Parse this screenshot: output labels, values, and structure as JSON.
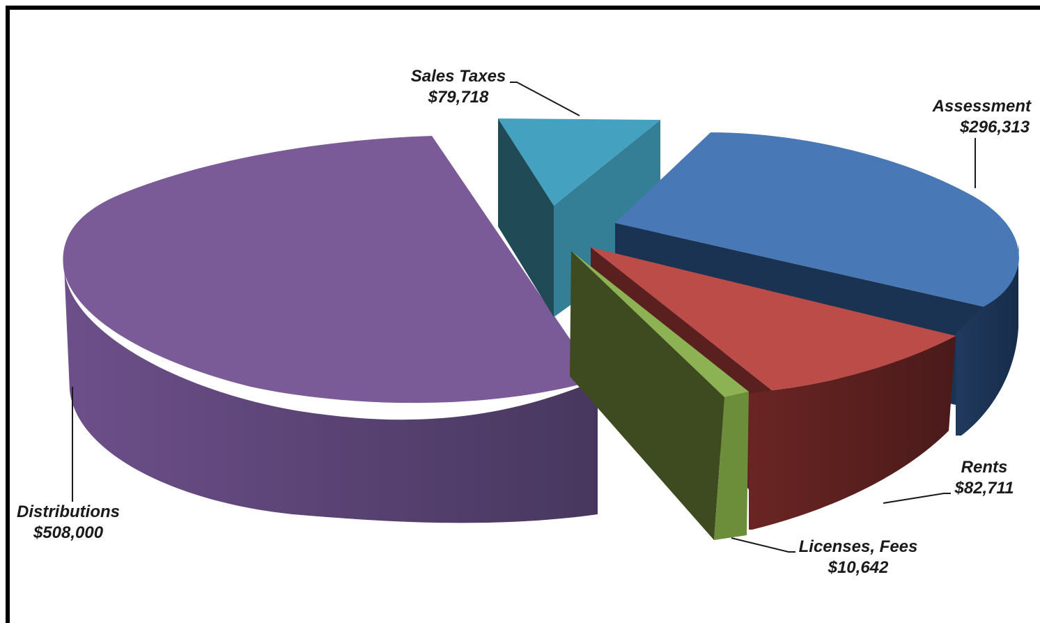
{
  "chart_data": {
    "type": "pie",
    "title": "",
    "slices": [
      {
        "label": "Distributions",
        "value_label": "$508,000",
        "value": 508000,
        "color": "#7b5a98"
      },
      {
        "label": "Sales Taxes",
        "value_label": "$79,718",
        "value": 79718,
        "color": "#45a1c0"
      },
      {
        "label": "Assessment",
        "value_label": "$296,313",
        "value": 296313,
        "color": "#4878b6"
      },
      {
        "label": "Rents",
        "value_label": "$82,711",
        "value": 82711,
        "color": "#bb4c47"
      },
      {
        "label": "Licenses, Fees",
        "value_label": "$10,642",
        "value": 10642,
        "color": "#8cb254"
      }
    ]
  }
}
